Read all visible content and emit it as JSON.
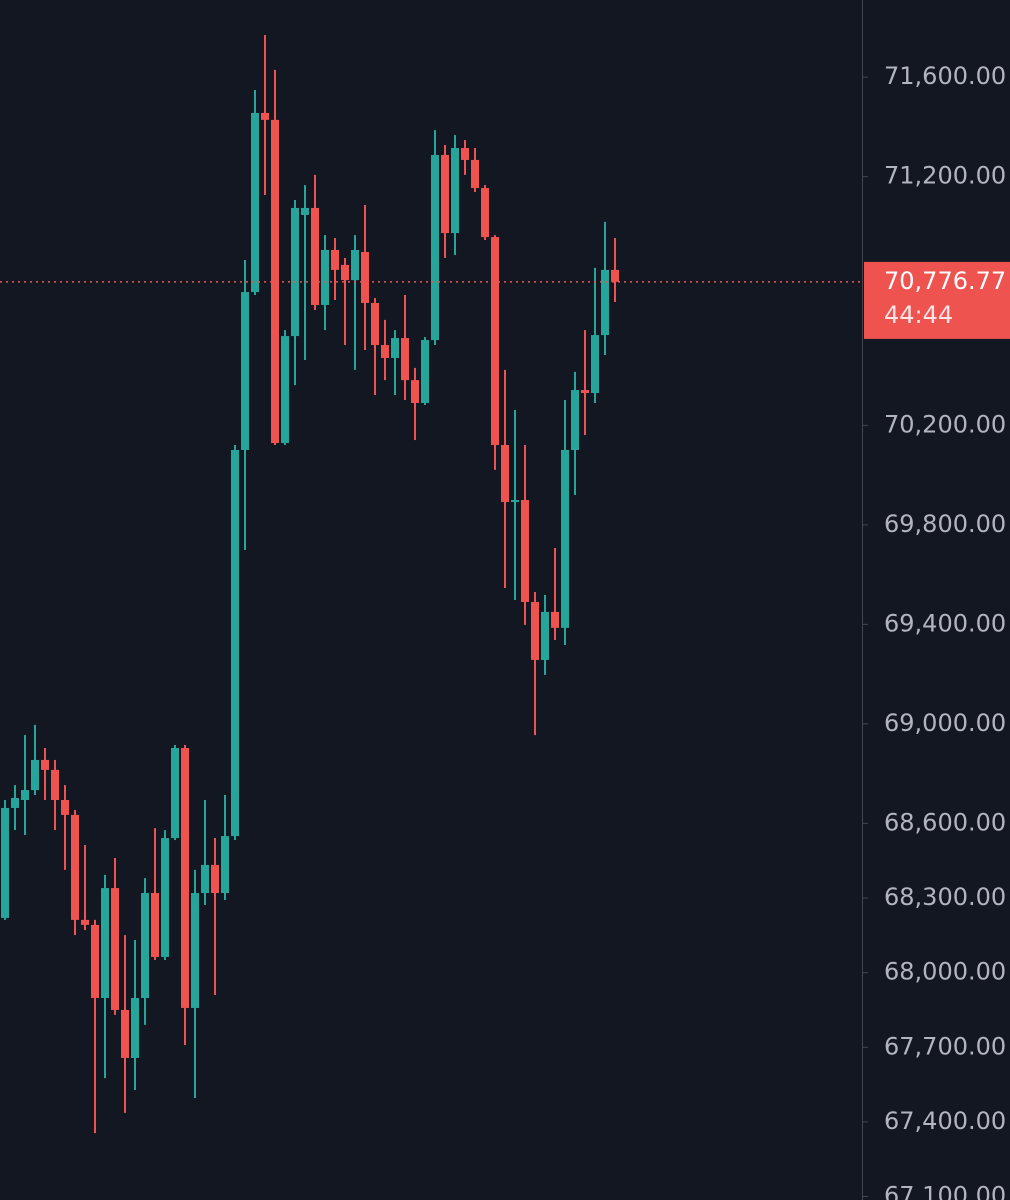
{
  "chart_data": {
    "type": "candlestick",
    "up_color": "#26a69a",
    "down_color": "#ef5350",
    "ylim": [
      67086,
      71910
    ],
    "yticks": [
      {
        "value": 71600,
        "label": "71,600.00"
      },
      {
        "value": 71200,
        "label": "71,200.00"
      },
      {
        "value": 70200,
        "label": "70,200.00"
      },
      {
        "value": 69800,
        "label": "69,800.00"
      },
      {
        "value": 69400,
        "label": "69,400.00"
      },
      {
        "value": 69000,
        "label": "69,000.00"
      },
      {
        "value": 68600,
        "label": "68,600.00"
      },
      {
        "value": 68300,
        "label": "68,300.00"
      },
      {
        "value": 68000,
        "label": "68,000.00"
      },
      {
        "value": 67700,
        "label": "67,700.00"
      },
      {
        "value": 67400,
        "label": "67,400.00"
      },
      {
        "value": 67100,
        "label": "67,100.00"
      }
    ],
    "last_price": {
      "value": 70776.77,
      "label": "70,776.77"
    },
    "countdown": "44:44",
    "open": [
      68220,
      68662,
      68694,
      68734,
      68855,
      68815,
      68694,
      68634,
      68212,
      68192,
      67898,
      68340,
      67850,
      67657,
      67898,
      68320,
      68063,
      68541,
      68903,
      67858,
      68320,
      68433,
      68320,
      68549,
      70101,
      70736,
      71456,
      71428,
      70129,
      70559,
      71046,
      71074,
      70684,
      70905,
      70845,
      70784,
      70897,
      70692,
      70523,
      70471,
      70551,
      70382,
      70290,
      70543,
      71287,
      70973,
      71315,
      71267,
      71154,
      70957,
      70121,
      69892,
      69900,
      69490,
      69257,
      69450,
      69386,
      70101,
      70342,
      70330,
      70563,
      70825
    ],
    "high": [
      68694,
      68754,
      68955,
      68996,
      68903,
      68855,
      68754,
      68654,
      68513,
      68212,
      68393,
      68461,
      68151,
      68131,
      68380,
      68581,
      68573,
      68915,
      68915,
      68413,
      68694,
      68541,
      68714,
      70121,
      70865,
      71548,
      71769,
      71629,
      70583,
      71106,
      71166,
      71207,
      70965,
      70953,
      70873,
      70965,
      71086,
      70712,
      70624,
      70583,
      70724,
      70431,
      70555,
      71387,
      71327,
      71367,
      71347,
      71315,
      71166,
      70965,
      70423,
      70262,
      70121,
      69530,
      69518,
      69707,
      70302,
      70415,
      70583,
      70833,
      71018,
      70953
    ],
    "low": [
      68212,
      68573,
      68553,
      68714,
      68694,
      68573,
      68413,
      68151,
      68171,
      67355,
      67576,
      67830,
      67436,
      67528,
      67790,
      68051,
      68051,
      68533,
      67709,
      67496,
      68272,
      67910,
      68292,
      68533,
      69699,
      70724,
      71126,
      70121,
      70121,
      70362,
      70463,
      70664,
      70583,
      70704,
      70523,
      70423,
      70503,
      70322,
      70382,
      70322,
      70302,
      70141,
      70282,
      70523,
      70873,
      70885,
      71207,
      71138,
      70945,
      70021,
      69546,
      69498,
      69398,
      68955,
      69197,
      69337,
      69317,
      69920,
      70161,
      70290,
      70483,
      70696
    ],
    "close": [
      68662,
      68702,
      68734,
      68855,
      68815,
      68694,
      68634,
      68212,
      68192,
      67898,
      68340,
      67850,
      67657,
      67898,
      68320,
      68063,
      68541,
      68903,
      67858,
      68320,
      68433,
      68320,
      68549,
      70101,
      70736,
      71456,
      71428,
      70129,
      70559,
      71074,
      71074,
      70684,
      70905,
      70825,
      70784,
      70905,
      70692,
      70523,
      70471,
      70551,
      70382,
      70290,
      70543,
      71287,
      70973,
      71315,
      71267,
      71154,
      70957,
      70121,
      69892,
      69900,
      69490,
      69257,
      69450,
      69386,
      70101,
      70342,
      70330,
      70563,
      70825,
      70776.77
    ]
  }
}
